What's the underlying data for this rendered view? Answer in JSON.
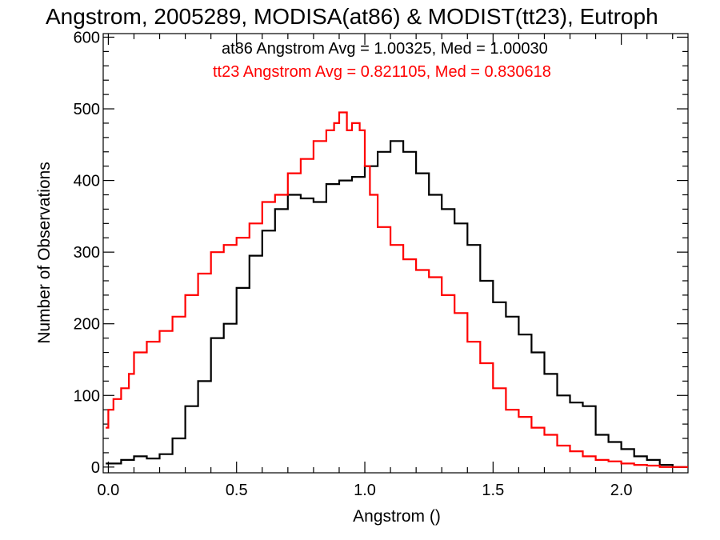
{
  "chart_data": {
    "type": "line",
    "step": true,
    "title": "Angstrom, 2005289, MODISA(at86) & MODIST(tt23), Eutroph",
    "xlabel": "Angstrom ()",
    "ylabel": "Number of Observations",
    "xlim": [
      -0.02,
      2.26
    ],
    "ylim": [
      -8,
      605
    ],
    "x_ticks": [
      0.0,
      0.5,
      1.0,
      1.5,
      2.0
    ],
    "x_tick_labels": [
      "0.0",
      "0.5",
      "1.0",
      "1.5",
      "2.0"
    ],
    "y_ticks": [
      0,
      100,
      200,
      300,
      400,
      500,
      600
    ],
    "y_tick_labels": [
      "0",
      "100",
      "200",
      "300",
      "400",
      "500",
      "600"
    ],
    "legend_placement": "top-right",
    "grid": false,
    "annotations": [
      {
        "text": "at86 Angstrom Avg = 1.00325, Med = 1.00030",
        "color": "#000000"
      },
      {
        "text": "tt23 Angstrom Avg = 0.821105, Med = 0.830618",
        "color": "#ff0000"
      }
    ],
    "series": [
      {
        "color": "#000000",
        "x": [
          -0.01,
          0.05,
          0.1,
          0.15,
          0.2,
          0.25,
          0.3,
          0.35,
          0.4,
          0.45,
          0.5,
          0.55,
          0.6,
          0.65,
          0.7,
          0.75,
          0.8,
          0.85,
          0.9,
          0.95,
          1.0,
          1.05,
          1.1,
          1.15,
          1.2,
          1.25,
          1.3,
          1.35,
          1.4,
          1.45,
          1.5,
          1.55,
          1.6,
          1.65,
          1.7,
          1.75,
          1.8,
          1.85,
          1.9,
          1.95,
          2.0,
          2.05,
          2.1,
          2.15,
          2.2,
          2.26
        ],
        "y": [
          5,
          10,
          15,
          12,
          18,
          40,
          85,
          120,
          180,
          200,
          250,
          295,
          330,
          360,
          380,
          375,
          370,
          395,
          400,
          405,
          420,
          440,
          455,
          440,
          410,
          380,
          360,
          340,
          310,
          260,
          230,
          210,
          185,
          160,
          130,
          100,
          90,
          85,
          45,
          35,
          25,
          15,
          10,
          3,
          0,
          0
        ]
      },
      {
        "color": "#ff0000",
        "x": [
          -0.01,
          0.0,
          0.02,
          0.05,
          0.08,
          0.1,
          0.15,
          0.2,
          0.25,
          0.3,
          0.35,
          0.4,
          0.45,
          0.5,
          0.55,
          0.6,
          0.65,
          0.7,
          0.75,
          0.8,
          0.85,
          0.88,
          0.9,
          0.93,
          0.95,
          0.98,
          1.0,
          1.02,
          1.05,
          1.1,
          1.15,
          1.2,
          1.25,
          1.3,
          1.35,
          1.4,
          1.45,
          1.5,
          1.55,
          1.6,
          1.65,
          1.7,
          1.75,
          1.8,
          1.85,
          1.9,
          1.95,
          2.0,
          2.05,
          2.1,
          2.15,
          2.2,
          2.26
        ],
        "y": [
          55,
          80,
          95,
          110,
          130,
          160,
          175,
          190,
          210,
          240,
          270,
          300,
          310,
          320,
          340,
          370,
          380,
          410,
          430,
          455,
          470,
          480,
          495,
          470,
          480,
          470,
          420,
          380,
          335,
          310,
          290,
          275,
          265,
          240,
          215,
          175,
          145,
          110,
          80,
          70,
          55,
          45,
          30,
          22,
          15,
          10,
          8,
          5,
          3,
          2,
          0,
          0,
          0
        ]
      }
    ]
  }
}
